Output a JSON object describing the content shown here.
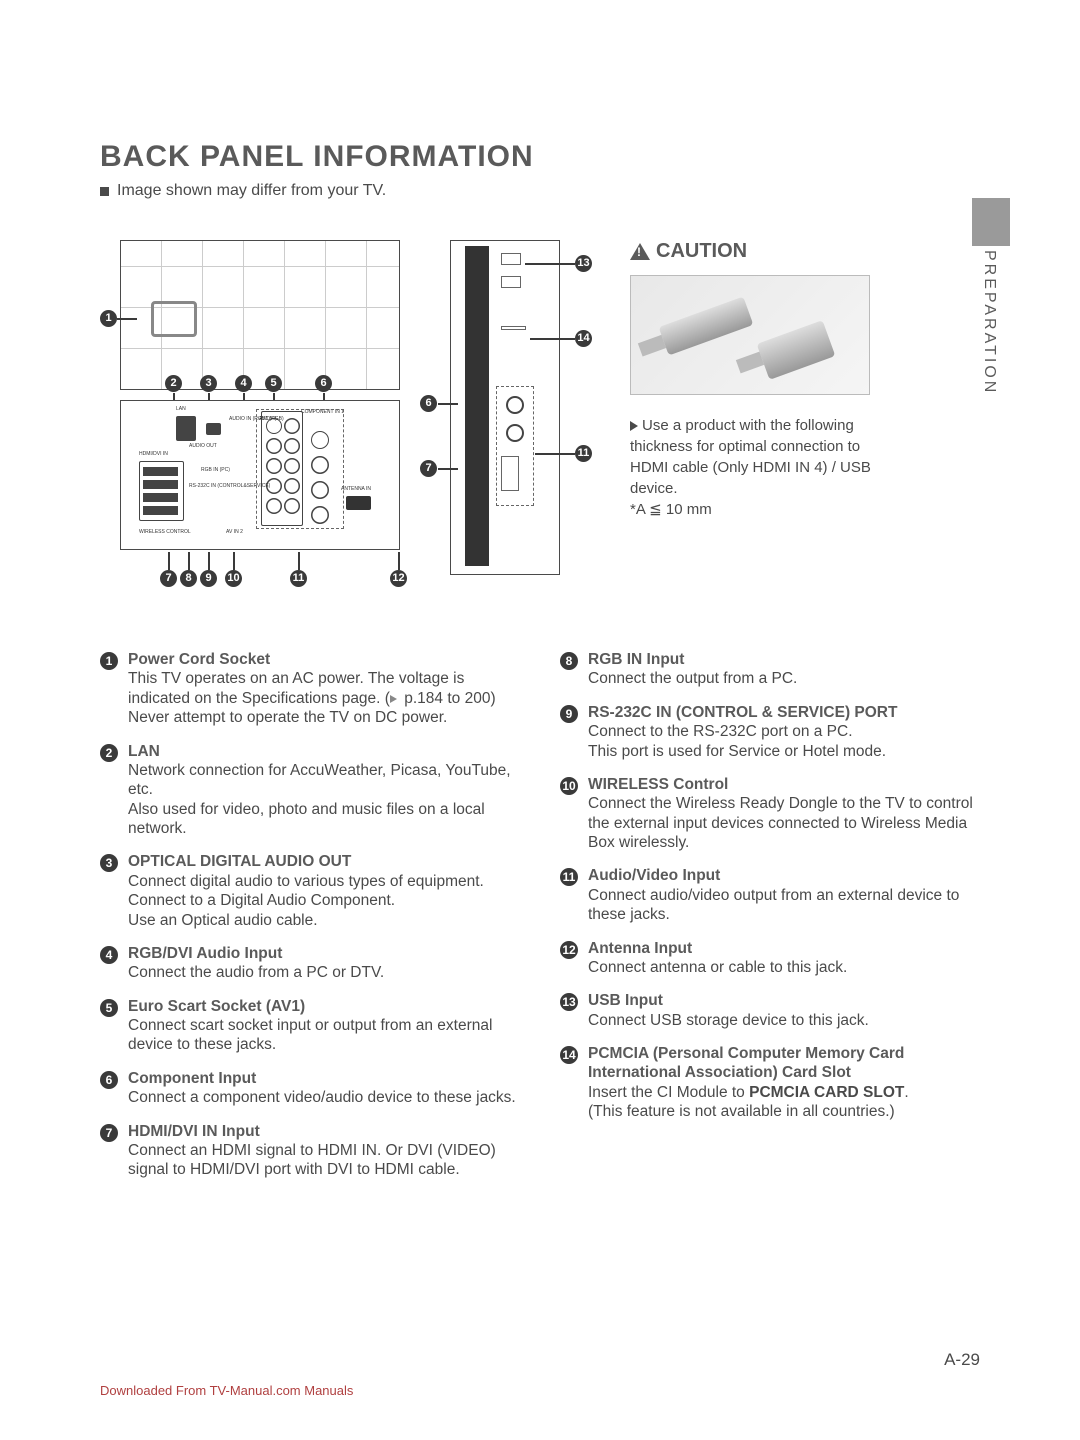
{
  "title": "BACK PANEL INFORMATION",
  "subtitle": "Image shown may differ from your TV.",
  "sideTab": "PREPARATION",
  "caution": {
    "heading": "CAUTION",
    "body": "Use a product with the following thickness for optimal connection to HDMI cable (Only HDMI IN 4) / USB device.",
    "spec": "*A ≦ 10 mm"
  },
  "leftItems": [
    {
      "n": "1",
      "title": "Power Cord Socket",
      "desc": "This TV operates on an AC power. The voltage is indicated on the Specifications page. (▶ p.184 to 200) Never attempt to operate the TV on DC power."
    },
    {
      "n": "2",
      "title": "LAN",
      "desc": "Network connection for AccuWeather, Picasa, YouTube, etc.\nAlso used for video, photo and music files on a local network."
    },
    {
      "n": "3",
      "title": "OPTICAL DIGITAL AUDIO OUT",
      "desc": "Connect digital audio to various types of equipment.\nConnect to a Digital Audio Component.\nUse an Optical audio cable."
    },
    {
      "n": "4",
      "title": "RGB/DVI Audio Input",
      "desc": "Connect the audio from a PC or DTV."
    },
    {
      "n": "5",
      "title": "Euro Scart Socket (AV1)",
      "desc": "Connect scart socket input or output from an external device to these jacks."
    },
    {
      "n": "6",
      "title": "Component Input",
      "desc": "Connect a component video/audio device to these jacks."
    },
    {
      "n": "7",
      "title": "HDMI/DVI IN Input",
      "desc": "Connect an HDMI signal to HDMI IN. Or DVI (VIDEO) signal to HDMI/DVI port with DVI to HDMI cable."
    }
  ],
  "rightItems": [
    {
      "n": "8",
      "title": "RGB IN Input",
      "desc": "Connect the output from a PC."
    },
    {
      "n": "9",
      "title": "RS-232C IN (CONTROL & SERVICE) PORT",
      "desc": "Connect to the RS-232C port on a PC.\nThis port is used for Service or Hotel mode."
    },
    {
      "n": "10",
      "title": "WIRELESS Control",
      "desc": "Connect the Wireless Ready Dongle to the TV to control the external input devices connected to Wireless Media Box wirelessly."
    },
    {
      "n": "11",
      "title": "Audio/Video Input",
      "desc": "Connect audio/video output from an external device to these jacks."
    },
    {
      "n": "12",
      "title": "Antenna Input",
      "desc": "Connect antenna or cable to this jack."
    },
    {
      "n": "13",
      "title": "USB Input",
      "desc": "Connect USB storage device to this jack."
    },
    {
      "n": "14",
      "title": "PCMCIA (Personal Computer Memory Card International Association) Card Slot",
      "desc": "Insert the CI Module to PCMCIA CARD SLOT.\n(This feature is not available in all countries.)"
    }
  ],
  "pageNumber": "A-29",
  "footer": "Downloaded From TV-Manual.com Manuals",
  "calloutsTop": [
    "2",
    "3",
    "4",
    "5",
    "6"
  ],
  "calloutsBottom": [
    "7",
    "8",
    "9",
    "10",
    "11",
    "12"
  ],
  "calloutOne": "1",
  "sideCallouts": {
    "c6": "6",
    "c7": "7",
    "c11": "11",
    "c13": "13",
    "c14": "14"
  }
}
